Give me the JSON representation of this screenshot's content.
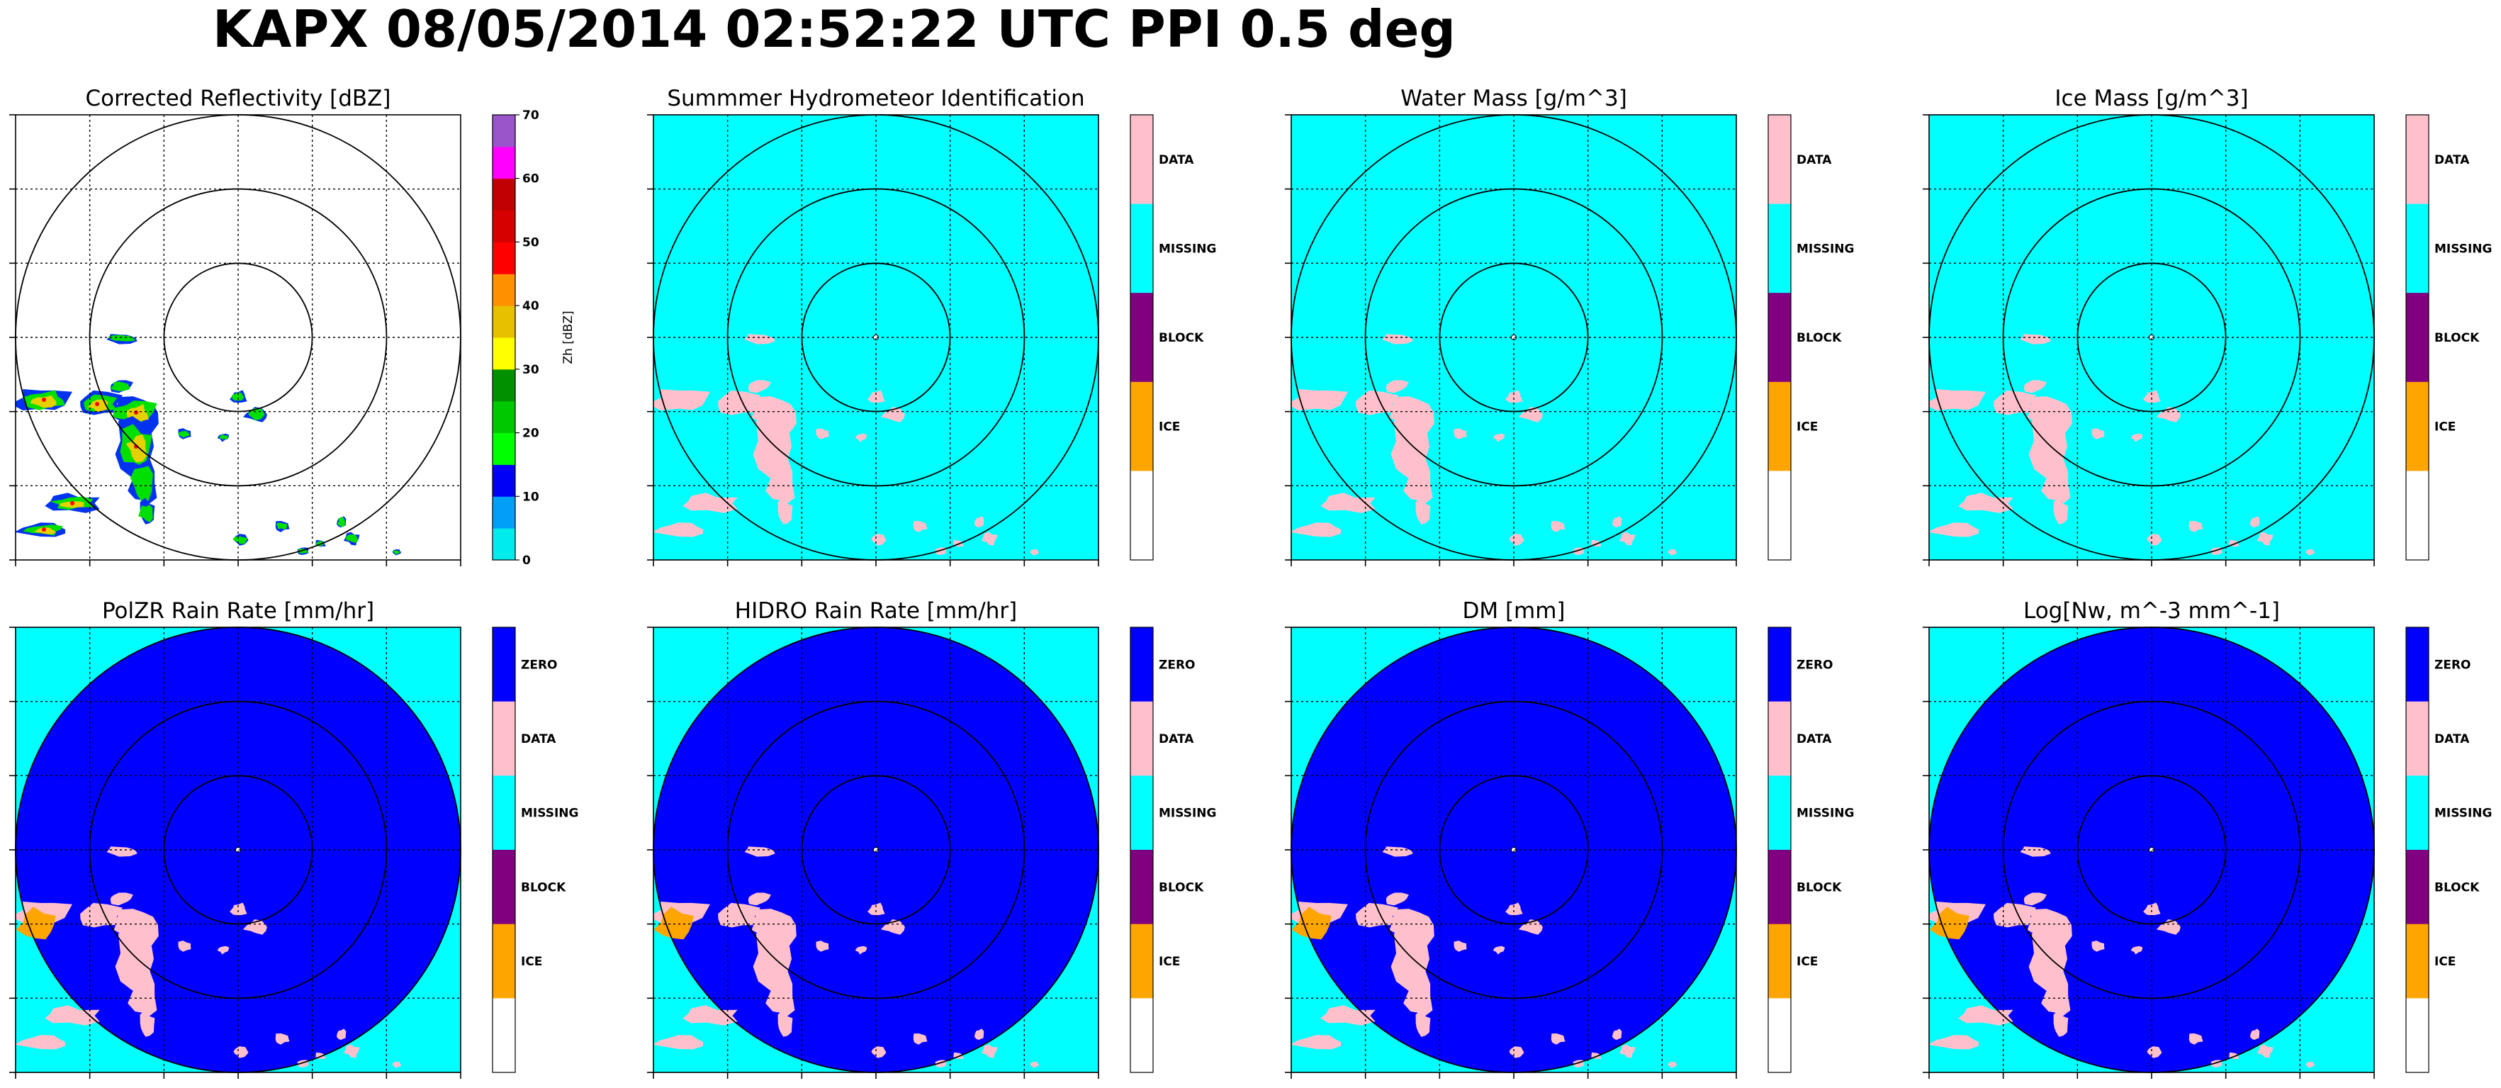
{
  "figure": {
    "title": "KAPX 08/05/2014 02:52:22 UTC PPI 0.5 deg"
  },
  "colors": {
    "background_cyan": "#00ffff",
    "zero_blue": "#0000ff",
    "data_pink": "#ffc0cb",
    "block_purple": "#800080",
    "ice_orange": "#ffa500",
    "range_ring": "#000000"
  },
  "chart_data": [
    {
      "type": "heatmap",
      "title": "Corrected Reflectivity [dBZ]",
      "colorbar": {
        "kind": "continuous",
        "label": "Zh [dBZ]",
        "ticks": [
          "0",
          "10",
          "20",
          "30",
          "40",
          "50",
          "60",
          "70"
        ],
        "range": [
          0,
          70
        ],
        "colors": [
          "#00ecec",
          "#01a0f6",
          "#0000f6",
          "#00ff00",
          "#00c800",
          "#009000",
          "#ffff00",
          "#e7c000",
          "#ff9000",
          "#ff0000",
          "#d60000",
          "#c00000",
          "#ff00ff",
          "#9955c9"
        ]
      },
      "range_rings": 3,
      "grid": true
    },
    {
      "type": "heatmap",
      "title": "Summmer Hydrometeor Identification",
      "colorbar": {
        "kind": "categorical",
        "categories": [
          "DATA",
          "MISSING",
          "BLOCK",
          "ICE",
          ""
        ],
        "colors": [
          "#ffc0cb",
          "#00ffff",
          "#800080",
          "#ffa500",
          "#ffffff"
        ]
      },
      "range_rings": 3,
      "grid": true
    },
    {
      "type": "heatmap",
      "title": "Water Mass [g/m^3]",
      "colorbar": {
        "kind": "categorical",
        "categories": [
          "DATA",
          "MISSING",
          "BLOCK",
          "ICE",
          ""
        ],
        "colors": [
          "#ffc0cb",
          "#00ffff",
          "#800080",
          "#ffa500",
          "#ffffff"
        ]
      },
      "range_rings": 3,
      "grid": true
    },
    {
      "type": "heatmap",
      "title": "Ice Mass [g/m^3]",
      "colorbar": {
        "kind": "categorical",
        "categories": [
          "DATA",
          "MISSING",
          "BLOCK",
          "ICE",
          ""
        ],
        "colors": [
          "#ffc0cb",
          "#00ffff",
          "#800080",
          "#ffa500",
          "#ffffff"
        ]
      },
      "range_rings": 3,
      "grid": true
    },
    {
      "type": "heatmap",
      "title": "PolZR Rain Rate [mm/hr]",
      "colorbar": {
        "kind": "categorical",
        "categories": [
          "ZERO",
          "DATA",
          "MISSING",
          "BLOCK",
          "ICE",
          ""
        ],
        "colors": [
          "#0000ff",
          "#ffc0cb",
          "#00ffff",
          "#800080",
          "#ffa500",
          "#ffffff"
        ]
      },
      "range_rings": 3,
      "grid": true
    },
    {
      "type": "heatmap",
      "title": "HIDRO Rain Rate [mm/hr]",
      "colorbar": {
        "kind": "categorical",
        "categories": [
          "ZERO",
          "DATA",
          "MISSING",
          "BLOCK",
          "ICE",
          ""
        ],
        "colors": [
          "#0000ff",
          "#ffc0cb",
          "#00ffff",
          "#800080",
          "#ffa500",
          "#ffffff"
        ]
      },
      "range_rings": 3,
      "grid": true
    },
    {
      "type": "heatmap",
      "title": "DM [mm]",
      "colorbar": {
        "kind": "categorical",
        "categories": [
          "ZERO",
          "DATA",
          "MISSING",
          "BLOCK",
          "ICE",
          ""
        ],
        "colors": [
          "#0000ff",
          "#ffc0cb",
          "#00ffff",
          "#800080",
          "#ffa500",
          "#ffffff"
        ]
      },
      "range_rings": 3,
      "grid": true
    },
    {
      "type": "heatmap",
      "title": "Log[Nw, m^-3 mm^-1]",
      "colorbar": {
        "kind": "categorical",
        "categories": [
          "ZERO",
          "DATA",
          "MISSING",
          "BLOCK",
          "ICE",
          ""
        ],
        "colors": [
          "#0000ff",
          "#ffc0cb",
          "#00ffff",
          "#800080",
          "#ffa500",
          "#ffffff"
        ]
      },
      "range_rings": 3,
      "grid": true
    }
  ]
}
